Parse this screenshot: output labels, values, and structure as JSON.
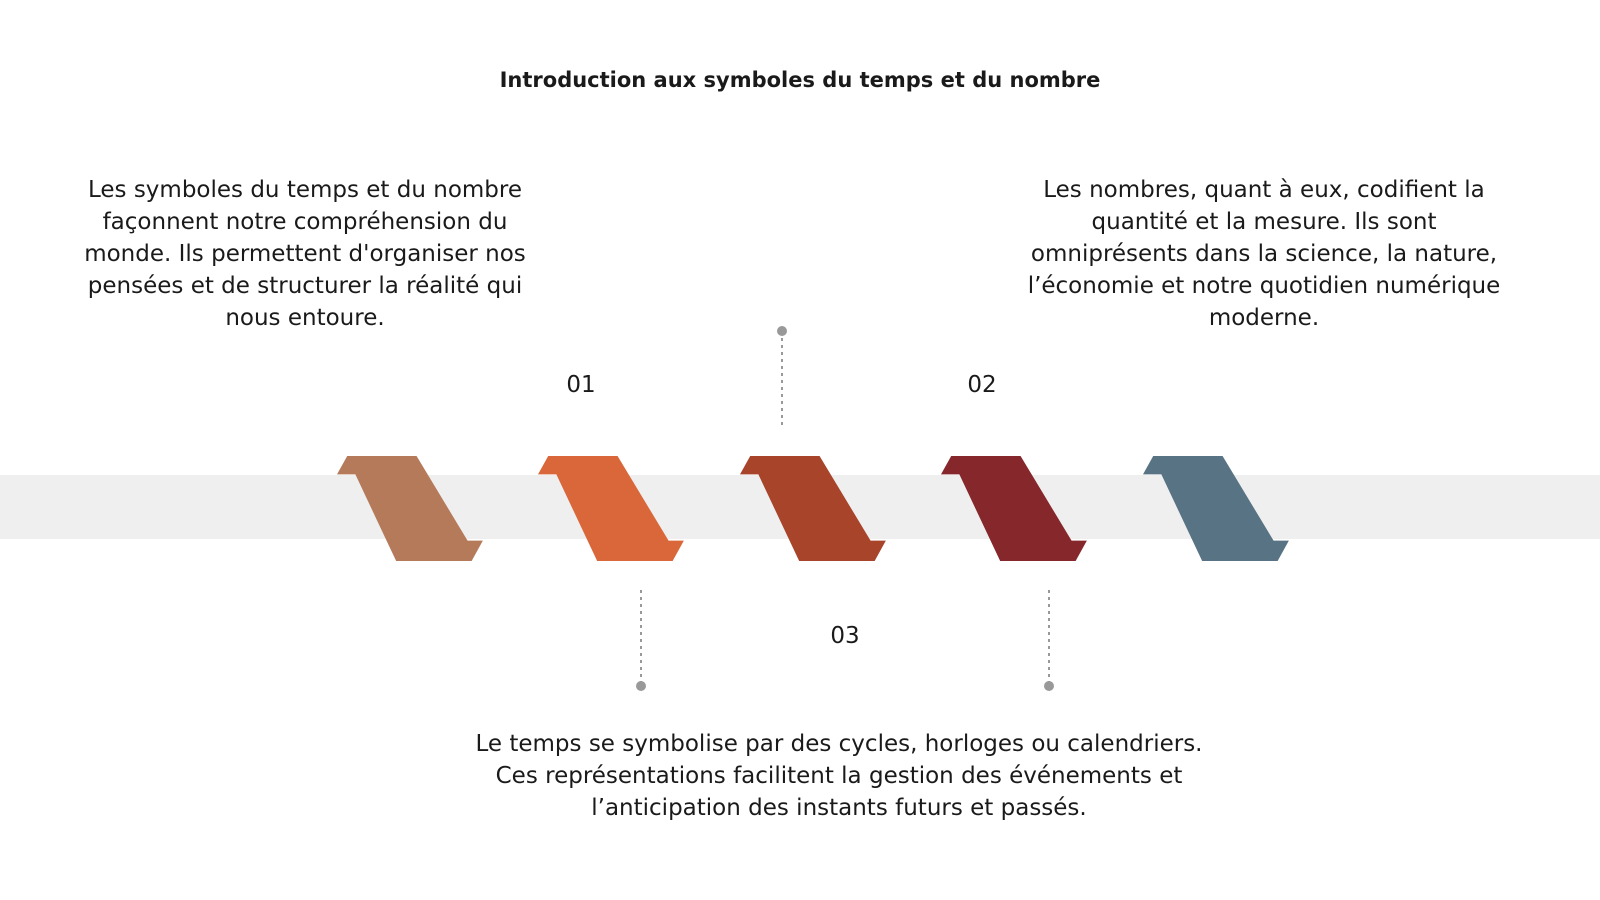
{
  "title": "Introduction aux symboles du temps et du nombre",
  "steps": [
    {
      "label": "01",
      "text": "Les symboles du temps et du nombre façonnent notre compréhension du monde. Ils permettent d'organiser nos pensées et de structurer la réalité qui nous entoure."
    },
    {
      "label": "02",
      "text": "Les nombres, quant à eux, codifient la quantité et la mesure. Ils sont omniprésents dans la science, la nature, l’économie et notre quotidien numérique moderne."
    },
    {
      "label": "03",
      "text": "Le temps se symbolise par des cycles, horloges ou calendriers. Ces représentations facilitent la gestion des événements et l’anticipation des instants futurs et passés."
    }
  ]
}
